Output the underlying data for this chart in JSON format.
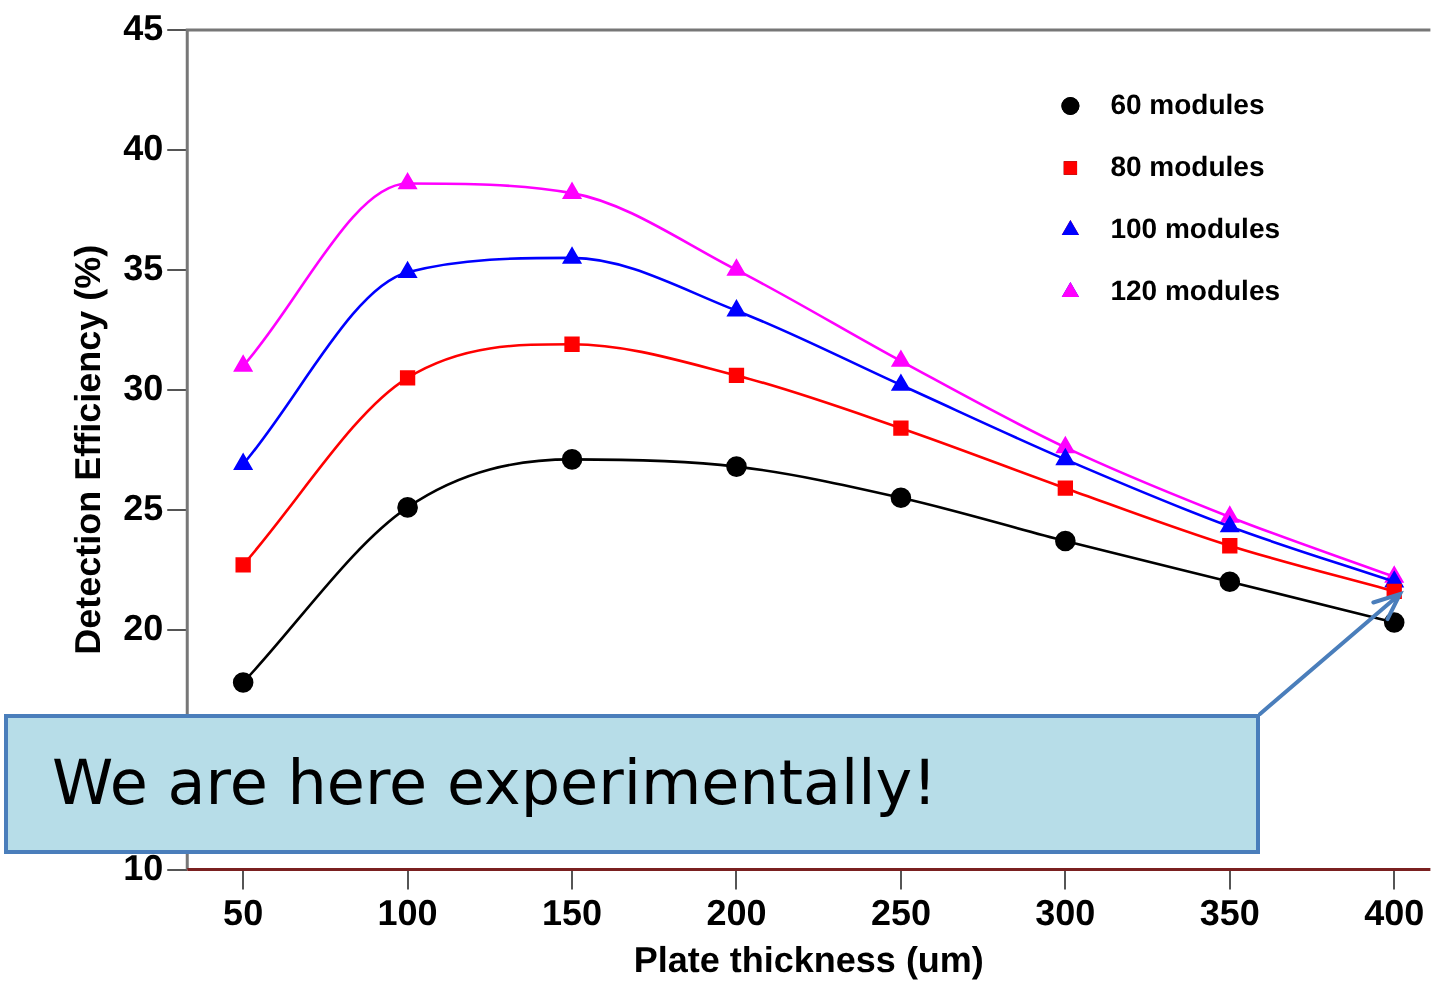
{
  "chart_data": {
    "type": "line",
    "xlabel": "Plate thickness (um)",
    "ylabel": "Detection Efficiency (%)",
    "x": [
      50,
      100,
      150,
      200,
      250,
      300,
      350,
      400
    ],
    "series": [
      {
        "name": "60 modules",
        "color": "#000000",
        "marker": "circle",
        "values": [
          17.8,
          25.1,
          27.1,
          26.8,
          25.5,
          23.7,
          22.0,
          20.3
        ]
      },
      {
        "name": "80 modules",
        "color": "#ff0000",
        "marker": "square",
        "values": [
          22.7,
          30.5,
          31.9,
          30.6,
          28.4,
          25.9,
          23.5,
          21.6
        ]
      },
      {
        "name": "100 modules",
        "color": "#0000ff",
        "marker": "triangle",
        "values": [
          26.9,
          34.9,
          35.5,
          33.3,
          30.2,
          27.1,
          24.3,
          22.0
        ]
      },
      {
        "name": "120 modules",
        "color": "#ff00ff",
        "marker": "triangle",
        "values": [
          31.0,
          38.6,
          38.2,
          35.0,
          31.2,
          27.6,
          24.7,
          22.2
        ]
      }
    ],
    "xlim": [
      33,
      411
    ],
    "xticks": [
      50,
      100,
      150,
      200,
      250,
      300,
      350,
      400
    ],
    "ylim": [
      10,
      45
    ],
    "yticks": [
      10,
      {
        "value": 15,
        "label": null
      },
      20,
      25,
      30,
      35,
      40,
      45
    ],
    "grid": false,
    "legend": "top right",
    "line_style": "solid",
    "annotations": [
      "We are here experimentally!"
    ]
  }
}
